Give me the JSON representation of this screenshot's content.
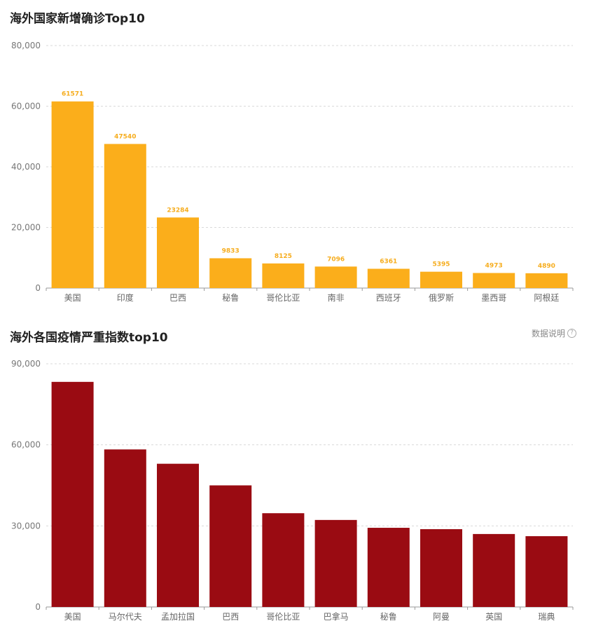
{
  "chart_data": [
    {
      "type": "bar",
      "title": "海外国家新增确诊Top10",
      "categories": [
        "美国",
        "印度",
        "巴西",
        "秘鲁",
        "哥伦比亚",
        "南非",
        "西班牙",
        "俄罗斯",
        "墨西哥",
        "阿根廷"
      ],
      "values": [
        61571,
        47540,
        23284,
        9833,
        8125,
        7096,
        6361,
        5395,
        4973,
        4890
      ],
      "show_data_labels": true,
      "ylim": [
        0,
        80000
      ],
      "yticks": [
        0,
        20000,
        40000,
        60000,
        80000
      ],
      "ytick_labels": [
        "0",
        "20,000",
        "40,000",
        "60,000",
        "80,000"
      ],
      "grid": true,
      "color": "#fbae1b"
    },
    {
      "type": "bar",
      "title": "海外各国疫情严重指数top10",
      "categories": [
        "美国",
        "马尔代夫",
        "孟加拉国",
        "巴西",
        "哥伦比亚",
        "巴拿马",
        "秘鲁",
        "阿曼",
        "英国",
        "瑞典"
      ],
      "values": [
        83300,
        58300,
        53000,
        45000,
        34700,
        32200,
        29300,
        28800,
        27000,
        26200
      ],
      "show_data_labels": false,
      "ylim": [
        0,
        90000
      ],
      "yticks": [
        0,
        30000,
        60000,
        90000
      ],
      "ytick_labels": [
        "0",
        "30,000",
        "60,000",
        "90,000"
      ],
      "grid": true,
      "color": "#9a0b12"
    }
  ],
  "header2": {
    "help_label": "数据说明",
    "help_icon": "question-circle-icon"
  }
}
